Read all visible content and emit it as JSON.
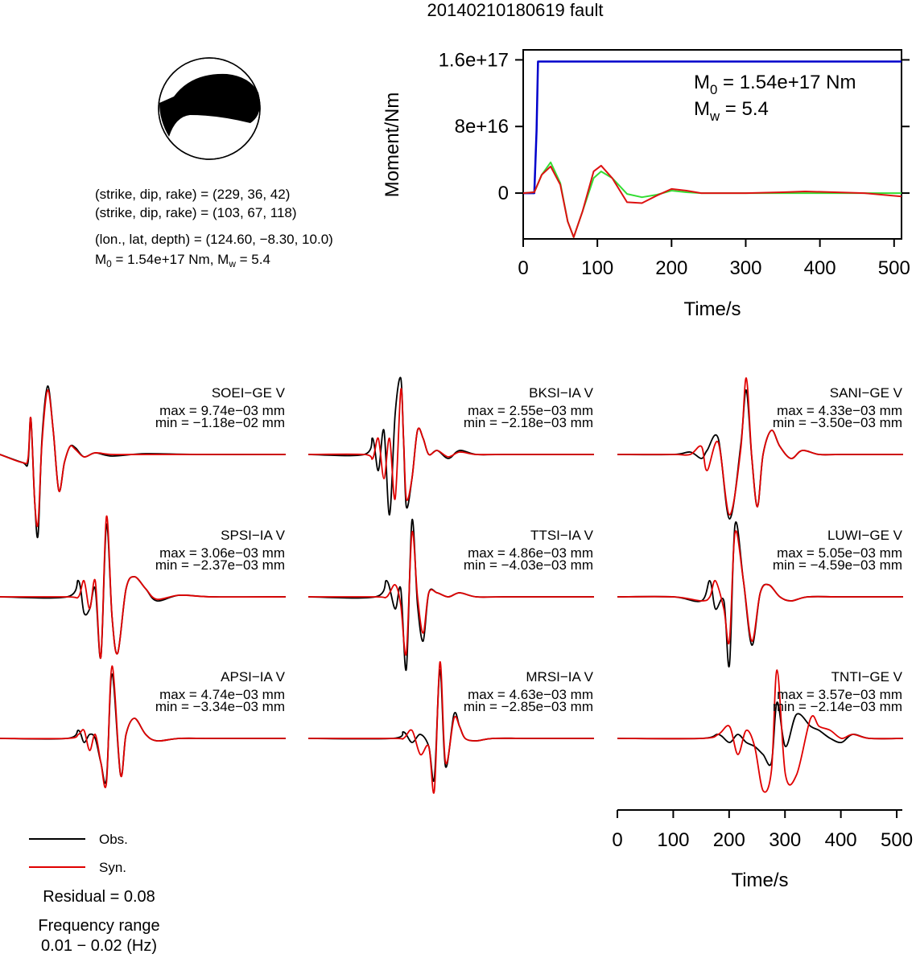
{
  "title": "20140210180619 fault",
  "mechanism": {
    "plane1": "(strike, dip, rake) = (229, 36, 42)",
    "plane2": "(strike, dip, rake) = (103, 67, 118)",
    "location": "(lon., lat, depth) = (124.60, −8.30, 10.0)",
    "moment_pre": "M",
    "moment_sub": "0",
    "moment_post": " = 1.54e+17 Nm, M",
    "mw_sub": "w",
    "mw_post": " = 5.4"
  },
  "moment_plot": {
    "ylabel": "Moment/Nm",
    "xlabel": "Time/s",
    "y_tick_labels": [
      "1.6e+17",
      "8e+16",
      "0"
    ],
    "y_ticks": [
      1.6e+17,
      8e+16,
      0
    ],
    "x_tick_labels": [
      "0",
      "100",
      "200",
      "300",
      "400",
      "500"
    ],
    "annot_m0_pre": "M",
    "annot_m0_sub": "0",
    "annot_m0_post": " = 1.54e+17 Nm",
    "annot_mw_pre": "M",
    "annot_mw_sub": "w",
    "annot_mw_post": " = 5.4"
  },
  "legend": {
    "obs_label": "Obs.",
    "syn_label": "Syn.",
    "residual": "Residual = 0.08",
    "freq_title": "Frequency range",
    "freq_range": "0.01 − 0.02 (Hz)"
  },
  "time_axis": {
    "xlabel": "Time/s",
    "tick_labels": [
      "0",
      "100",
      "200",
      "300",
      "400",
      "500"
    ]
  },
  "colors": {
    "observed": "#000000",
    "synthetic": "#e00000",
    "cumulative_moment": "#0000cc",
    "moment_rate_green": "#33dd33",
    "moment_rate_red": "#dd1111",
    "beachball_compressional": "#000000"
  },
  "chart_data": [
    {
      "type": "line",
      "title": "",
      "xlabel": "Time/s",
      "ylabel": "Moment/Nm",
      "xlim": [
        0,
        510
      ],
      "ylim": [
        -5.5e+16,
        1.72e+17
      ],
      "series": [
        {
          "name": "",
          "color": "#0000cc",
          "x": [
            0,
            15,
            18,
            20,
            510
          ],
          "values": [
            0,
            0,
            7.5e+16,
            1.58e+17,
            1.58e+17
          ]
        },
        {
          "name": "",
          "color": "#33dd33",
          "x": [
            0,
            15,
            25,
            37,
            50,
            60,
            68,
            80,
            95,
            105,
            120,
            140,
            160,
            180,
            200,
            220,
            240,
            260,
            300,
            400,
            510
          ],
          "values": [
            0,
            1000000000000000.0,
            2.2e+16,
            3.7e+16,
            1.2e+16,
            -3.4e+16,
            -5.3e+16,
            -2.2e+16,
            1.8e+16,
            2.6e+16,
            1.8e+16,
            -1000000000000000.0,
            -5000000000000000.0,
            -2000000000000000.0,
            3000000000000000.0,
            1000000000000000.0,
            0,
            0,
            0,
            0,
            0
          ]
        },
        {
          "name": "",
          "color": "#dd1111",
          "x": [
            0,
            15,
            25,
            37,
            50,
            60,
            68,
            80,
            95,
            105,
            120,
            140,
            160,
            180,
            200,
            220,
            240,
            260,
            300,
            350,
            380,
            420,
            460,
            510
          ],
          "values": [
            0,
            1000000000000000.0,
            2.2e+16,
            3.2e+16,
            1e+16,
            -3.4e+16,
            -5.3e+16,
            -2.2e+16,
            2.6e+16,
            3.3e+16,
            1.8e+16,
            -1.1e+16,
            -1.2e+16,
            -3000000000000000.0,
            5000000000000000.0,
            3000000000000000.0,
            0,
            0,
            0,
            1000000000000000.0,
            2000000000000000.0,
            1000000000000000.0,
            0,
            -4000000000000000.0
          ]
        }
      ]
    },
    {
      "type": "line",
      "title": "waveform fits (vertical component)",
      "xlabel": "Time/s",
      "xlim": [
        0,
        510
      ],
      "series_names": [
        "Obs.",
        "Syn."
      ],
      "stations": [
        {
          "name": "SOEI−GE V",
          "max": "max = 9.74e−03 mm",
          "min": "min = −1.18e−02 mm",
          "obs": {
            "x": [
              0,
              40,
              50,
              55,
              62,
              68,
              75,
              85,
              95,
              105,
              115,
              125,
              135,
              150,
              170,
              200,
              260,
              350,
              510
            ],
            "y": [
              0,
              -0.1,
              -0.1,
              0.45,
              -0.6,
              -1.0,
              0.2,
              0.85,
              0.3,
              -0.45,
              -0.1,
              0.1,
              0.08,
              -0.03,
              0.02,
              -0.02,
              0.01,
              0,
              0
            ]
          },
          "syn": {
            "x": [
              0,
              40,
              50,
              55,
              62,
              68,
              75,
              85,
              95,
              105,
              115,
              125,
              135,
              150,
              170,
              200,
              260,
              350,
              510
            ],
            "y": [
              0,
              -0.1,
              -0.05,
              0.45,
              -0.6,
              -0.85,
              0.15,
              0.8,
              0.3,
              -0.45,
              -0.1,
              0.1,
              0.06,
              -0.03,
              0.02,
              0,
              0,
              0,
              0
            ]
          }
        },
        {
          "name": "BKSI−IA V",
          "max": "max = 2.55e−03 mm",
          "min": "min = −2.18e−03 mm",
          "obs": {
            "x": [
              0,
              100,
              115,
              125,
              135,
              145,
              155,
              165,
              170,
              175,
              185,
              195,
              205,
              215,
              230,
              250,
              270,
              300,
              350,
              510
            ],
            "y": [
              0,
              0,
              0.2,
              -0.2,
              0.3,
              -0.75,
              0.5,
              0.95,
              0.2,
              -0.65,
              -0.3,
              0.3,
              0.2,
              0,
              0.05,
              -0.05,
              0.05,
              0,
              0,
              0
            ]
          },
          "syn": {
            "x": [
              0,
              100,
              115,
              125,
              135,
              145,
              155,
              165,
              170,
              175,
              185,
              195,
              205,
              215,
              230,
              250,
              270,
              300,
              350,
              510
            ],
            "y": [
              0,
              0,
              -0.05,
              0.2,
              -0.3,
              0.2,
              -0.55,
              0.8,
              0.2,
              -0.55,
              -0.3,
              0.3,
              0.2,
              0,
              0.05,
              -0.03,
              0.03,
              0,
              0,
              0
            ]
          }
        },
        {
          "name": "SANI−GE V",
          "max": "max = 4.33e−03 mm",
          "min": "min = −3.50e−03 mm",
          "obs": {
            "x": [
              0,
              100,
              130,
              150,
              160,
              180,
              200,
              220,
              230,
              240,
              250,
              260,
              275,
              290,
              310,
              330,
              360,
              400,
              510
            ],
            "y": [
              0,
              0,
              0.03,
              -0.05,
              0.05,
              0.2,
              -0.8,
              0.1,
              0.8,
              -0.05,
              -0.65,
              0,
              0.3,
              0.1,
              -0.05,
              0.05,
              0,
              0,
              0
            ]
          },
          "syn": {
            "x": [
              0,
              100,
              130,
              150,
              160,
              180,
              200,
              220,
              230,
              240,
              250,
              260,
              275,
              290,
              310,
              330,
              360,
              400,
              510
            ],
            "y": [
              0,
              0,
              0,
              0.1,
              -0.2,
              0.15,
              -0.75,
              0.05,
              0.95,
              -0.05,
              -0.65,
              0,
              0.3,
              0.1,
              -0.05,
              0.05,
              0,
              0,
              0
            ]
          }
        },
        {
          "name": "SPSI−IA V",
          "max": "max = 3.06e−03 mm",
          "min": "min = −2.37e−03 mm",
          "obs": {
            "x": [
              0,
              120,
              140,
              150,
              160,
              170,
              180,
              190,
              200,
              210,
              225,
              240,
              260,
              280,
              320,
              380,
              510
            ],
            "y": [
              0,
              0,
              0.2,
              -0.2,
              -0.15,
              0.1,
              -0.75,
              0.9,
              -0.25,
              -0.7,
              0.1,
              0.25,
              0.1,
              -0.05,
              0.02,
              0,
              0
            ]
          },
          "syn": {
            "x": [
              0,
              120,
              140,
              150,
              160,
              170,
              180,
              190,
              200,
              210,
              225,
              240,
              260,
              280,
              320,
              380,
              510
            ],
            "y": [
              0,
              0,
              0,
              0.2,
              -0.15,
              0.2,
              -0.75,
              1.0,
              -0.25,
              -0.7,
              0.1,
              0.25,
              0.1,
              -0.03,
              0.02,
              0,
              0
            ]
          }
        },
        {
          "name": "TTSI−IA V",
          "max": "max = 4.86e−03 mm",
          "min": "min = −4.03e−03 mm",
          "obs": {
            "x": [
              0,
              120,
              140,
              155,
              165,
              175,
              185,
              195,
              205,
              215,
              230,
              250,
              270,
              300,
              350,
              510
            ],
            "y": [
              0,
              0,
              0.2,
              -0.15,
              0.1,
              -0.9,
              0.95,
              -0.1,
              -0.55,
              0.05,
              0.05,
              0,
              0.05,
              0,
              0,
              0
            ]
          },
          "syn": {
            "x": [
              0,
              120,
              140,
              155,
              165,
              175,
              185,
              195,
              205,
              215,
              230,
              250,
              270,
              300,
              350,
              510
            ],
            "y": [
              0,
              0,
              0,
              0.15,
              -0.1,
              -0.7,
              0.8,
              0,
              -0.45,
              0.05,
              0.05,
              0,
              0.05,
              0,
              0,
              0
            ]
          }
        },
        {
          "name": "LUWI−GE V",
          "max": "max = 5.05e−03 mm",
          "min": "min = −4.59e−03 mm",
          "obs": {
            "x": [
              0,
              100,
              150,
              165,
              175,
              190,
              200,
              210,
              225,
              240,
              255,
              270,
              290,
              310,
              340,
              400,
              510
            ],
            "y": [
              0,
              0,
              -0.05,
              0.2,
              -0.15,
              -0.05,
              -0.85,
              0.9,
              0.2,
              -0.6,
              0.05,
              0.15,
              0,
              -0.05,
              0,
              0,
              0
            ]
          },
          "syn": {
            "x": [
              0,
              100,
              150,
              165,
              175,
              190,
              200,
              210,
              225,
              240,
              255,
              270,
              290,
              310,
              340,
              400,
              510
            ],
            "y": [
              0,
              0,
              -0.05,
              0,
              0.2,
              -0.15,
              -0.55,
              0.8,
              0.2,
              -0.55,
              0.05,
              0.15,
              0,
              -0.05,
              0,
              0,
              0
            ]
          }
        },
        {
          "name": "APSI−IA V",
          "max": "max = 4.74e−03 mm",
          "min": "min = −3.34e−03 mm",
          "obs": {
            "x": [
              0,
              120,
              140,
              150,
              160,
              170,
              180,
              190,
              200,
              215,
              225,
              240,
              260,
              280,
              320,
              380,
              510
            ],
            "y": [
              0,
              0,
              0.1,
              -0.05,
              0.05,
              0,
              -0.3,
              -0.5,
              0.8,
              -0.45,
              0.05,
              0.25,
              0.05,
              -0.03,
              0,
              0,
              0
            ]
          },
          "syn": {
            "x": [
              0,
              120,
              140,
              150,
              160,
              170,
              180,
              190,
              200,
              215,
              225,
              240,
              260,
              280,
              320,
              380,
              510
            ],
            "y": [
              0,
              0,
              0.05,
              0.1,
              -0.15,
              0.05,
              -0.3,
              -0.55,
              0.9,
              -0.45,
              0.05,
              0.25,
              0.05,
              -0.03,
              0,
              0,
              0
            ]
          }
        },
        {
          "name": "MRSI−IA V",
          "max": "max = 4.63e−03 mm",
          "min": "min = −2.85e−03 mm",
          "obs": {
            "x": [
              0,
              150,
              170,
              185,
              200,
              215,
              225,
              235,
              245,
              260,
              270,
              280,
              300,
              330,
              400,
              510
            ],
            "y": [
              0,
              0,
              0.08,
              -0.05,
              0.05,
              -0.1,
              -0.5,
              0.85,
              -0.35,
              0.3,
              0.15,
              0,
              -0.03,
              0,
              0,
              0
            ]
          },
          "syn": {
            "x": [
              0,
              150,
              170,
              185,
              200,
              215,
              225,
              235,
              245,
              260,
              270,
              280,
              300,
              330,
              400,
              510
            ],
            "y": [
              0,
              0,
              0,
              0.1,
              -0.2,
              -0.1,
              -0.65,
              0.95,
              -0.3,
              0.25,
              0.15,
              0,
              -0.03,
              0,
              0,
              0
            ]
          }
        },
        {
          "name": "TNTI−GE V",
          "max": "max = 3.57e−03 mm",
          "min": "min = −2.14e−03 mm",
          "obs": {
            "x": [
              0,
              150,
              180,
              200,
              215,
              230,
              245,
              260,
              275,
              285,
              300,
              320,
              345,
              360,
              380,
              400,
              420,
              450,
              510
            ],
            "y": [
              0,
              0,
              0.05,
              -0.05,
              0.05,
              -0.05,
              -0.1,
              -0.2,
              -0.3,
              0.45,
              -0.1,
              0.3,
              0.15,
              0.1,
              0,
              -0.05,
              0.05,
              0,
              0
            ]
          },
          "syn": {
            "x": [
              0,
              150,
              180,
              200,
              215,
              230,
              245,
              260,
              275,
              285,
              300,
              320,
              345,
              360,
              380,
              400,
              420,
              450,
              510
            ],
            "y": [
              0,
              0,
              0.05,
              0.15,
              -0.2,
              0.1,
              -0.1,
              -0.65,
              -0.4,
              0.85,
              -0.45,
              -0.45,
              0.25,
              0.15,
              0.1,
              0,
              0.05,
              0,
              0
            ]
          }
        }
      ]
    }
  ]
}
